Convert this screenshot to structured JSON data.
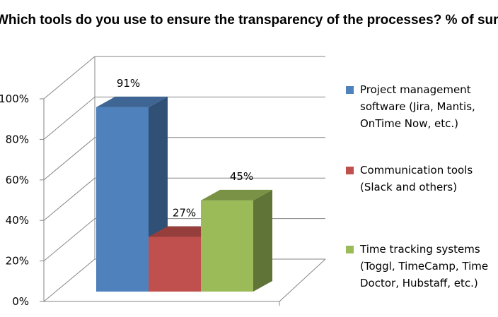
{
  "chart_data": {
    "type": "bar",
    "title": "Which tools do you use to ensure the transparency of the processes? % of surveyed companies",
    "xlabel": "",
    "ylabel": "",
    "ylim": [
      0,
      100
    ],
    "yticks": [
      "0%",
      "20%",
      "40%",
      "60%",
      "80%",
      "100%"
    ],
    "grid": true,
    "legend_position": "right",
    "series": [
      {
        "name": "Project management software (Jira, Mantis, OnTime Now, etc.)",
        "legend_lines": [
          "Project management",
          "software (Jira, Mantis,",
          "OnTime Now, etc.)"
        ],
        "value": 91,
        "data_label": "91%",
        "color": "#4F81BD"
      },
      {
        "name": "Communication tools (Slack and others)",
        "legend_lines": [
          "Communication tools",
          "(Slack and others)"
        ],
        "value": 27,
        "data_label": "27%",
        "color": "#C0504D"
      },
      {
        "name": "Time tracking systems (Toggl, TimeCamp, Time Doctor, Hubstaff, etc.)",
        "legend_lines": [
          "Time tracking systems",
          "(Toggl, TimeCamp, Time",
          "Doctor, Hubstaff, etc.)"
        ],
        "value": 45,
        "data_label": "45%",
        "color": "#9BBB59"
      }
    ]
  }
}
